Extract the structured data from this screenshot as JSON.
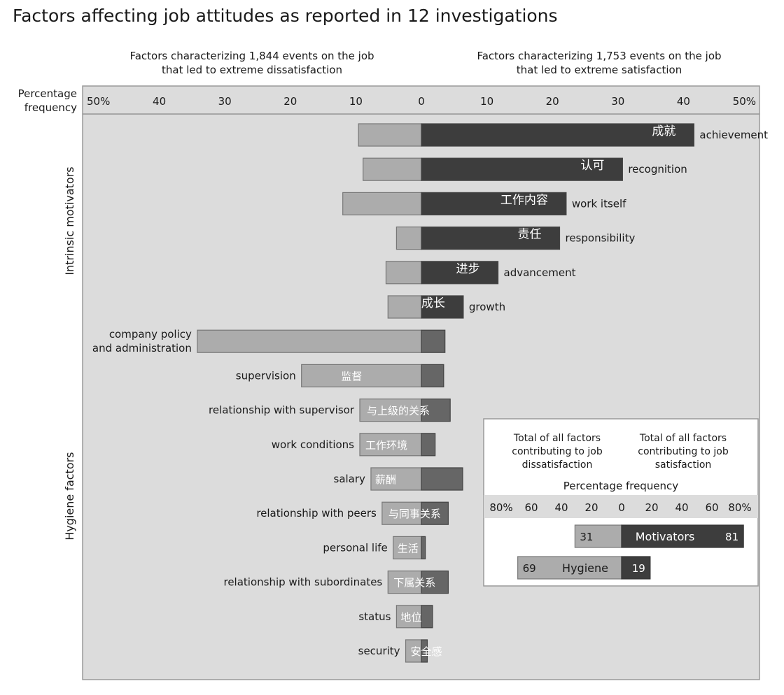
{
  "chart_data": {
    "type": "bar",
    "title": "Factors affecting job attitudes as reported in 12 investigations",
    "left_header": [
      "Factors characterizing 1,844 events on the job",
      "that led to extreme dissatisfaction"
    ],
    "right_header": [
      "Factors characterizing 1,753 events on the job",
      "that led to extreme satisfaction"
    ],
    "axis_label": [
      "Percentage",
      "frequency"
    ],
    "xlim": [
      -50,
      50
    ],
    "ticks": [
      {
        "value": -50,
        "label": "50%"
      },
      {
        "value": -40,
        "label": "40"
      },
      {
        "value": -30,
        "label": "30"
      },
      {
        "value": -20,
        "label": "20"
      },
      {
        "value": -10,
        "label": "10"
      },
      {
        "value": 0,
        "label": "0"
      },
      {
        "value": 10,
        "label": "10"
      },
      {
        "value": 20,
        "label": "20"
      },
      {
        "value": 30,
        "label": "30"
      },
      {
        "value": 40,
        "label": "40"
      },
      {
        "value": 50,
        "label": "50%"
      }
    ],
    "groups": [
      {
        "label": "Intrinsic motivators",
        "factor_count": 6
      },
      {
        "label": "Hygiene factors",
        "factor_count": 10
      }
    ],
    "series": [
      {
        "name": "dissatisfaction",
        "color": "#acacac"
      },
      {
        "name": "satisfaction",
        "color": "#3d3d3d"
      }
    ],
    "factors": [
      {
        "label": "achievement",
        "cn": "成就",
        "dissatisfaction": 9.6,
        "satisfaction": 41.6,
        "group": "Intrinsic motivators"
      },
      {
        "label": "recognition",
        "cn": "认可",
        "dissatisfaction": 8.9,
        "satisfaction": 30.7,
        "group": "Intrinsic motivators"
      },
      {
        "label": "work itself",
        "cn": "工作内容",
        "dissatisfaction": 12.0,
        "satisfaction": 22.1,
        "group": "Intrinsic motivators"
      },
      {
        "label": "responsibility",
        "cn": "责任",
        "dissatisfaction": 3.8,
        "satisfaction": 21.1,
        "group": "Intrinsic motivators"
      },
      {
        "label": "advancement",
        "cn": "进步",
        "dissatisfaction": 5.4,
        "satisfaction": 11.7,
        "group": "Intrinsic motivators"
      },
      {
        "label": "growth",
        "cn": "成长",
        "dissatisfaction": 5.1,
        "satisfaction": 6.4,
        "group": "Intrinsic motivators"
      },
      {
        "label": "company policy\nand administration",
        "cn": "",
        "dissatisfaction": 34.2,
        "satisfaction": 3.6,
        "group": "Hygiene factors"
      },
      {
        "label": "supervision",
        "cn": "监督",
        "dissatisfaction": 18.3,
        "satisfaction": 3.4,
        "group": "Hygiene factors"
      },
      {
        "label": "relationship with supervisor",
        "cn": "与上级的关系",
        "dissatisfaction": 9.4,
        "satisfaction": 4.4,
        "group": "Hygiene factors"
      },
      {
        "label": "work conditions",
        "cn": "工作环境",
        "dissatisfaction": 9.4,
        "satisfaction": 2.1,
        "group": "Hygiene factors"
      },
      {
        "label": "salary",
        "cn": "薪酬",
        "dissatisfaction": 7.7,
        "satisfaction": 6.3,
        "group": "Hygiene factors"
      },
      {
        "label": "relationship with peers",
        "cn": "与同事关系",
        "dissatisfaction": 6.0,
        "satisfaction": 4.1,
        "group": "Hygiene factors"
      },
      {
        "label": "personal life",
        "cn": "生活",
        "dissatisfaction": 4.3,
        "satisfaction": 0.6,
        "group": "Hygiene factors"
      },
      {
        "label": "relationship with subordinates",
        "cn": "下属关系",
        "dissatisfaction": 5.1,
        "satisfaction": 4.1,
        "group": "Hygiene factors"
      },
      {
        "label": "status",
        "cn": "地位",
        "dissatisfaction": 3.8,
        "satisfaction": 1.7,
        "group": "Hygiene factors"
      },
      {
        "label": "security",
        "cn": "安全感",
        "dissatisfaction": 2.4,
        "satisfaction": 0.9,
        "group": "Hygiene factors"
      }
    ],
    "inset": {
      "left_header": [
        "Total of all factors",
        "contributing to job",
        "dissatisfaction"
      ],
      "right_header": [
        "Total of all factors",
        "contributing to job",
        "satisfaction"
      ],
      "axis_title": "Percentage frequency",
      "xlim": [
        -80,
        80
      ],
      "ticks": [
        {
          "value": -80,
          "label": "80%"
        },
        {
          "value": -60,
          "label": "60"
        },
        {
          "value": -40,
          "label": "40"
        },
        {
          "value": -20,
          "label": "20"
        },
        {
          "value": 0,
          "label": "0"
        },
        {
          "value": 20,
          "label": "20"
        },
        {
          "value": 40,
          "label": "40"
        },
        {
          "value": 60,
          "label": "60"
        },
        {
          "value": 80,
          "label": "80%"
        }
      ],
      "bars": [
        {
          "label": "Motivators",
          "dissatisfaction": 31,
          "satisfaction": 81
        },
        {
          "label": "Hygiene",
          "dissatisfaction": 69,
          "satisfaction": 19
        }
      ]
    }
  }
}
